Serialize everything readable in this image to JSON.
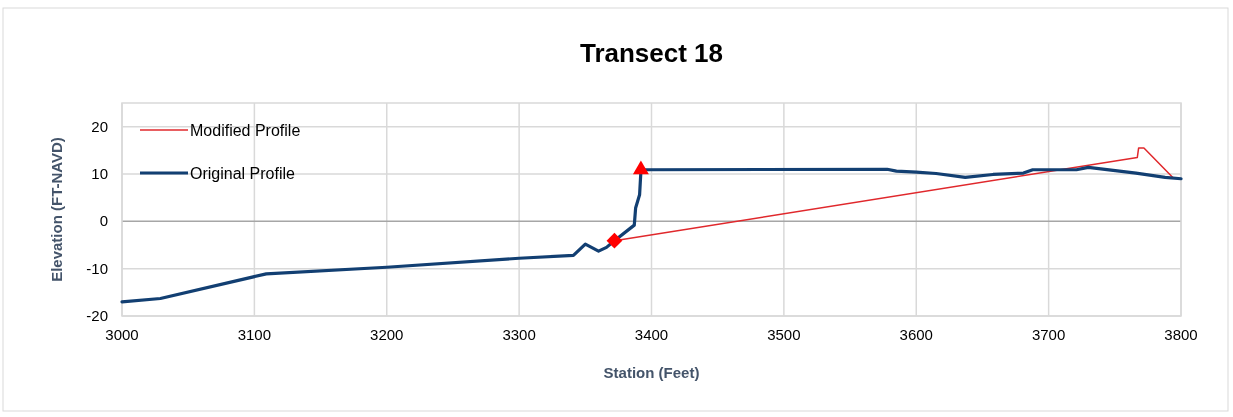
{
  "chart_data": {
    "type": "line",
    "title": "Transect 18",
    "xlabel": "Station (Feet)",
    "ylabel": "Elevation (FT-NAVD)",
    "xlim": [
      3000,
      3800
    ],
    "xticks": [
      3000,
      3100,
      3200,
      3300,
      3400,
      3500,
      3600,
      3700,
      3800
    ],
    "ylim": [
      -20,
      25
    ],
    "yticks": [
      -20,
      -10,
      0,
      10,
      20
    ],
    "grid": true,
    "legend": "top left",
    "marker": "none",
    "series": [
      {
        "name": "Modified Profile",
        "color": "#e0282c",
        "x": [
          3372,
          3767,
          3768,
          3772,
          3794
        ],
        "values": [
          -4.1,
          13.5,
          15.5,
          15.5,
          9.2
        ]
      },
      {
        "name": "Original Profile",
        "color": "#123f72",
        "x": [
          3000,
          3029,
          3109,
          3200,
          3300,
          3341,
          3350,
          3360,
          3366,
          3372,
          3387,
          3388,
          3391,
          3392,
          3395,
          3578,
          3585,
          3600,
          3615,
          3637,
          3658,
          3681,
          3688,
          3721,
          3730,
          3766,
          3788,
          3800
        ],
        "values": [
          -17.0,
          -16.3,
          -11.1,
          -9.7,
          -7.8,
          -7.2,
          -4.8,
          -6.3,
          -5.5,
          -4.1,
          -0.8,
          2.8,
          5.6,
          10.6,
          10.9,
          11.0,
          10.6,
          10.4,
          10.1,
          9.3,
          9.9,
          10.2,
          10.9,
          10.9,
          11.4,
          10.2,
          9.3,
          9.0
        ]
      },
      {
        "type": "scatter",
        "marker": "diamond",
        "color": "#ff0000",
        "x": [
          3372
        ],
        "values": [
          -4.1
        ]
      },
      {
        "type": "scatter",
        "marker": "triangle",
        "color": "#ff0000",
        "x": [
          3392
        ],
        "values": [
          10.9
        ]
      }
    ]
  }
}
